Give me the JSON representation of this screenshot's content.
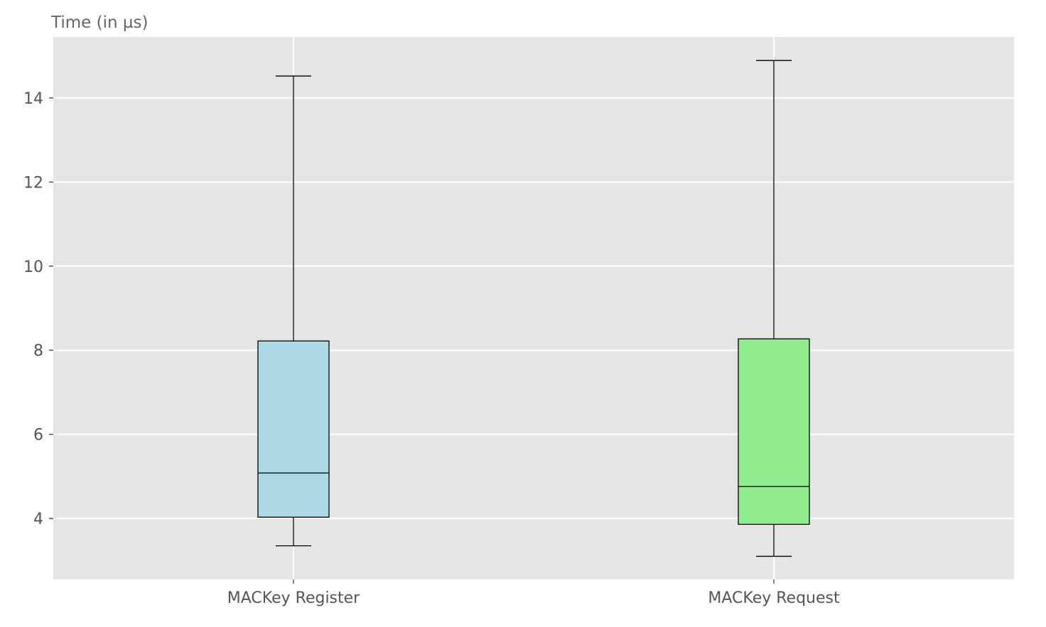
{
  "chart_data": {
    "type": "box",
    "ylabel": "Time (in µs)",
    "xlabel": "",
    "ylim": [
      2.55,
      15.45
    ],
    "yticks": [
      4,
      6,
      8,
      10,
      12,
      14
    ],
    "grid": true,
    "categories": [
      "MACKey Register",
      "MACKey Request"
    ],
    "boxes": [
      {
        "label": "MACKey Register",
        "whisker_low": 3.35,
        "q1": 4.03,
        "median": 5.08,
        "q3": 8.22,
        "whisker_high": 14.52,
        "color": "#add8e6"
      },
      {
        "label": "MACKey Request",
        "whisker_low": 3.1,
        "q1": 3.86,
        "median": 4.76,
        "q3": 8.27,
        "whisker_high": 14.89,
        "color": "#90ee90"
      }
    ],
    "colors": {
      "plot_background": "#e5e5e5",
      "grid": "#ffffff",
      "box_edge": "#000000",
      "tick_text": "#555555"
    }
  }
}
